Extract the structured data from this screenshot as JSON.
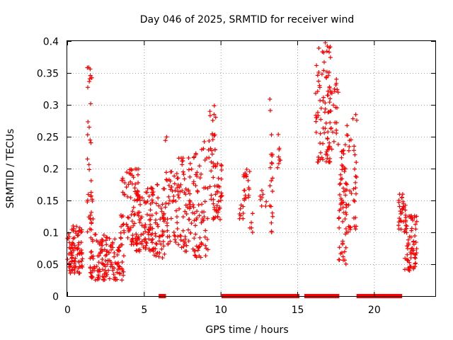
{
  "chart_data": {
    "type": "scatter",
    "title": "Day 046 of 2025, SRMTID for receiver wind",
    "xlabel": "GPS time / hours",
    "ylabel": "SRMTID / TECUs",
    "xlim": [
      0,
      24
    ],
    "ylim": [
      0,
      0.4
    ],
    "grid": true,
    "marker": "plus",
    "color": "#ff0000",
    "x_ticks": [
      {
        "value": 0,
        "label": "0"
      },
      {
        "value": 5,
        "label": "5"
      },
      {
        "value": 10,
        "label": "10"
      },
      {
        "value": 15,
        "label": "15"
      },
      {
        "value": 20,
        "label": "20"
      }
    ],
    "y_ticks": [
      {
        "value": 0,
        "label": "0"
      },
      {
        "value": 0.05,
        "label": "0.05"
      },
      {
        "value": 0.1,
        "label": "0.1"
      },
      {
        "value": 0.15,
        "label": "0.15"
      },
      {
        "value": 0.2,
        "label": "0.2"
      },
      {
        "value": 0.25,
        "label": "0.25"
      },
      {
        "value": 0.3,
        "label": "0.3"
      },
      {
        "value": 0.35,
        "label": "0.35"
      },
      {
        "value": 0.4,
        "label": "0.4"
      }
    ],
    "clusters": [
      {
        "x": [
          0.0,
          1.0
        ],
        "y": [
          0.035,
          0.11
        ],
        "n": 90
      },
      {
        "x": [
          1.3,
          1.6
        ],
        "y": [
          0.1,
          0.36
        ],
        "n": 30
      },
      {
        "x": [
          1.5,
          1.7
        ],
        "y": [
          0.12,
          0.16
        ],
        "n": 8
      },
      {
        "x": [
          1.5,
          3.7
        ],
        "y": [
          0.025,
          0.1
        ],
        "n": 140
      },
      {
        "x": [
          3.5,
          4.7
        ],
        "y": [
          0.08,
          0.2
        ],
        "n": 75
      },
      {
        "x": [
          4.5,
          5.6
        ],
        "y": [
          0.07,
          0.17
        ],
        "n": 80
      },
      {
        "x": [
          5.4,
          6.4
        ],
        "y": [
          0.06,
          0.175
        ],
        "n": 60
      },
      {
        "x": [
          6.4,
          7.3
        ],
        "y": [
          0.08,
          0.25
        ],
        "n": 55
      },
      {
        "x": [
          7.3,
          8.3
        ],
        "y": [
          0.07,
          0.22
        ],
        "n": 65
      },
      {
        "x": [
          8.3,
          9.2
        ],
        "y": [
          0.06,
          0.25
        ],
        "n": 60
      },
      {
        "x": [
          9.2,
          9.7
        ],
        "y": [
          0.15,
          0.32
        ],
        "n": 30
      },
      {
        "x": [
          9.5,
          10.1
        ],
        "y": [
          0.12,
          0.21
        ],
        "n": 40
      },
      {
        "x": [
          11.2,
          11.5
        ],
        "y": [
          0.12,
          0.15
        ],
        "n": 8
      },
      {
        "x": [
          11.5,
          11.9
        ],
        "y": [
          0.15,
          0.215
        ],
        "n": 20
      },
      {
        "x": [
          11.8,
          12.1
        ],
        "y": [
          0.1,
          0.13
        ],
        "n": 5
      },
      {
        "x": [
          12.5,
          13.0
        ],
        "y": [
          0.14,
          0.17
        ],
        "n": 8
      },
      {
        "x": [
          13.2,
          13.4
        ],
        "y": [
          0.1,
          0.31
        ],
        "n": 20
      },
      {
        "x": [
          13.7,
          13.9
        ],
        "y": [
          0.19,
          0.255
        ],
        "n": 8
      },
      {
        "x": [
          16.2,
          17.2
        ],
        "y": [
          0.21,
          0.4
        ],
        "n": 80
      },
      {
        "x": [
          17.0,
          17.7
        ],
        "y": [
          0.23,
          0.35
        ],
        "n": 30
      },
      {
        "x": [
          17.7,
          18.2
        ],
        "y": [
          0.05,
          0.24
        ],
        "n": 60
      },
      {
        "x": [
          18.2,
          18.9
        ],
        "y": [
          0.1,
          0.3
        ],
        "n": 40
      },
      {
        "x": [
          21.6,
          22.1
        ],
        "y": [
          0.1,
          0.16
        ],
        "n": 30
      },
      {
        "x": [
          22.0,
          22.8
        ],
        "y": [
          0.04,
          0.13
        ],
        "n": 70
      }
    ],
    "zero_segments": [
      {
        "x": [
          6.1,
          6.3
        ]
      },
      {
        "x": [
          10.2,
          12.2
        ]
      },
      {
        "x": [
          12.4,
          15.0
        ]
      },
      {
        "x": [
          15.6,
          17.6
        ]
      },
      {
        "x": [
          19.0,
          21.7
        ]
      }
    ]
  }
}
